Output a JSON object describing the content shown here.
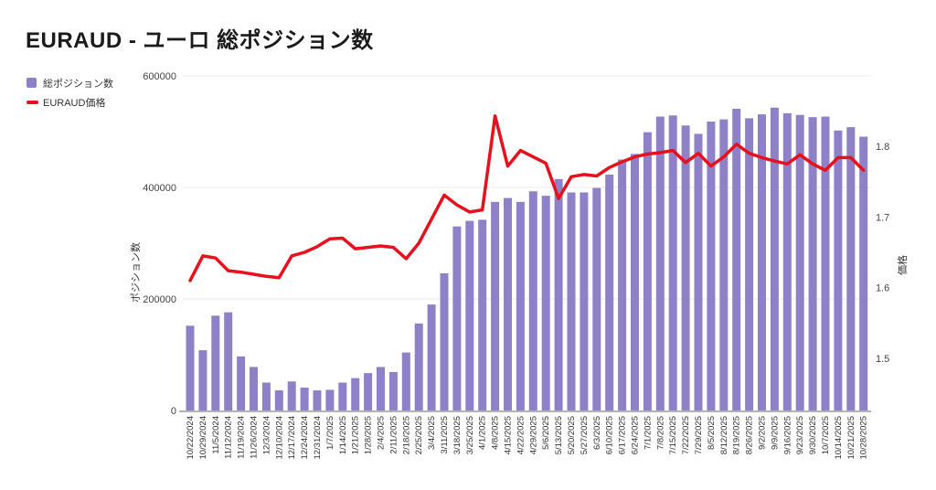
{
  "header": {
    "title": "EURAUD - ユーロ 総ポジション数"
  },
  "legend": {
    "items": [
      {
        "label": "総ポジション数",
        "type": "bar",
        "color": "#8e81c8"
      },
      {
        "label": "EURAUD価格",
        "type": "line",
        "color": "#e8101c"
      }
    ]
  },
  "chart_data": {
    "type": "bar+line combo",
    "title": "EURAUD - ユーロ 総ポジション数",
    "grid": "horizontal",
    "legend_position": "top-left",
    "categories": [
      "10/22/2024",
      "10/29/2024",
      "11/5/2024",
      "11/12/2024",
      "11/19/2024",
      "11/26/2024",
      "12/3/2024",
      "12/10/2024",
      "12/17/2024",
      "12/24/2024",
      "12/31/2024",
      "1/7/2025",
      "1/14/2025",
      "1/21/2025",
      "1/28/2025",
      "2/4/2025",
      "2/11/2025",
      "2/18/2025",
      "2/25/2025",
      "3/4/2025",
      "3/11/2025",
      "3/18/2025",
      "3/25/2025",
      "4/1/2025",
      "4/8/2025",
      "4/15/2025",
      "4/22/2025",
      "4/29/2025",
      "5/6/2025",
      "5/13/2025",
      "5/20/2025",
      "5/27/2025",
      "6/3/2025",
      "6/10/2025",
      "6/17/2025",
      "6/24/2025",
      "7/1/2025",
      "7/8/2025",
      "7/15/2025",
      "7/22/2025",
      "7/29/2025",
      "8/5/2025",
      "8/12/2025",
      "8/19/2025",
      "8/26/2025",
      "9/2/2025",
      "9/9/2025",
      "9/16/2025",
      "9/23/2025",
      "9/30/2025",
      "10/7/2025",
      "10/14/2025",
      "10/21/2025",
      "10/28/2025"
    ],
    "series": [
      {
        "name": "総ポジション数",
        "type": "bar",
        "axis": "left",
        "color": "#8e81c8",
        "values": [
          152000,
          108000,
          170000,
          176000,
          97000,
          78000,
          50000,
          36000,
          52000,
          41000,
          36000,
          37000,
          50000,
          58000,
          67000,
          78000,
          69000,
          104000,
          156000,
          190000,
          246000,
          330000,
          340000,
          342000,
          374000,
          381000,
          374000,
          393000,
          385000,
          415000,
          391000,
          391000,
          399000,
          423000,
          450000,
          460000,
          499000,
          527000,
          529000,
          511000,
          496000,
          518000,
          522000,
          541000,
          524000,
          531000,
          543000,
          533000,
          530000,
          526000,
          527000,
          502000,
          508000,
          491000
        ]
      },
      {
        "name": "EURAUD価格",
        "type": "line",
        "axis": "right",
        "color": "#e8101c",
        "values": [
          1.61,
          1.645,
          1.642,
          1.624,
          1.622,
          1.619,
          1.616,
          1.614,
          1.645,
          1.65,
          1.658,
          1.669,
          1.67,
          1.655,
          1.657,
          1.659,
          1.657,
          1.641,
          1.663,
          1.697,
          1.731,
          1.717,
          1.707,
          1.71,
          1.843,
          1.772,
          1.794,
          1.785,
          1.776,
          1.726,
          1.757,
          1.76,
          1.758,
          1.77,
          1.778,
          1.785,
          1.789,
          1.791,
          1.794,
          1.777,
          1.79,
          1.772,
          1.785,
          1.803,
          1.79,
          1.784,
          1.779,
          1.775,
          1.788,
          1.775,
          1.766,
          1.784,
          1.784,
          1.766
        ]
      }
    ],
    "left_axis": {
      "title": "ポジション数",
      "tick_labels": [
        "0",
        "200000",
        "400000",
        "600000"
      ],
      "ticks": [
        0,
        200000,
        400000,
        600000
      ],
      "range": [
        0,
        600000
      ]
    },
    "right_axis": {
      "title": "価格",
      "tick_labels": [
        "1.5",
        "1.6",
        "1.7",
        "1.8"
      ],
      "ticks": [
        1.5,
        1.6,
        1.7,
        1.8
      ]
    }
  }
}
